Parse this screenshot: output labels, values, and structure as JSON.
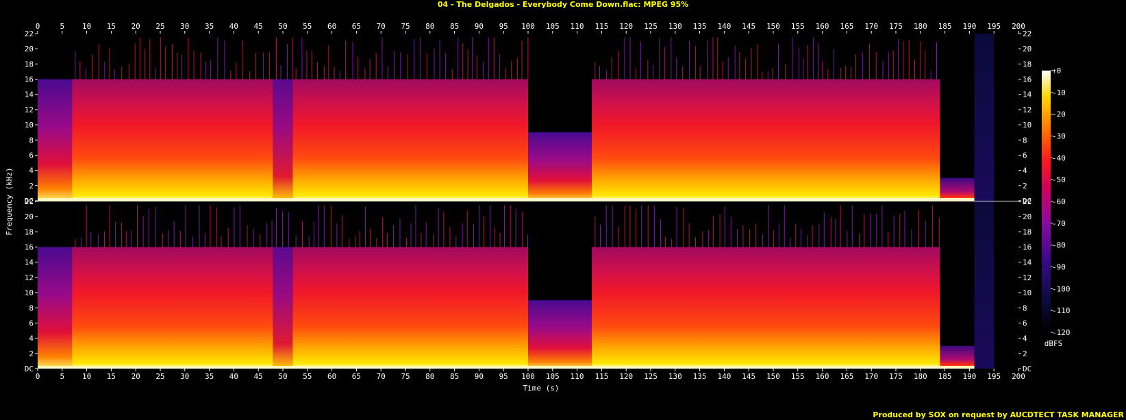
{
  "title": "04 - The Delgados - Everybody Come Down.flac: MPEG 95%",
  "footer": "Produced by SOX on request by AUCDTECT TASK MANAGER",
  "colors": {
    "background": "#000000",
    "text": "#ffffff",
    "title": "#ffff00"
  },
  "chart_data": {
    "type": "heatmap",
    "xlabel": "Time (s)",
    "ylabel": "Frequency (kHz)",
    "xlim": [
      0,
      200
    ],
    "ylim": [
      0,
      22
    ],
    "x_ticks": [
      "0",
      "5",
      "10",
      "15",
      "20",
      "25",
      "30",
      "35",
      "40",
      "45",
      "50",
      "55",
      "60",
      "65",
      "70",
      "75",
      "80",
      "85",
      "90",
      "95",
      "100",
      "105",
      "110",
      "115",
      "120",
      "125",
      "130",
      "135",
      "140",
      "145",
      "150",
      "155",
      "160",
      "165",
      "170",
      "175",
      "180",
      "185",
      "190",
      "195",
      "200"
    ],
    "y_ticks": [
      "DC",
      "2",
      "4",
      "6",
      "8",
      "10",
      "12",
      "14",
      "16",
      "18",
      "20",
      "22"
    ],
    "channels": 2,
    "colorbar": {
      "label": "dBFS",
      "range": [
        -120,
        0
      ],
      "ticks": [
        "+0",
        "-10",
        "-20",
        "-30",
        "-40",
        "-50",
        "-60",
        "-70",
        "-80",
        "-90",
        "-100",
        "-110",
        "-120"
      ]
    },
    "segments": [
      {
        "start": 0,
        "end": 7,
        "cutoff_khz": 16,
        "level": "quiet"
      },
      {
        "start": 7,
        "end": 48,
        "cutoff_khz": 16,
        "level": "loud"
      },
      {
        "start": 48,
        "end": 52,
        "cutoff_khz": 16,
        "level": "transition"
      },
      {
        "start": 52,
        "end": 100,
        "cutoff_khz": 16,
        "level": "loud"
      },
      {
        "start": 100,
        "end": 113,
        "cutoff_khz": 9,
        "level": "quiet"
      },
      {
        "start": 113,
        "end": 184,
        "cutoff_khz": 16,
        "level": "loud"
      },
      {
        "start": 184,
        "end": 191,
        "cutoff_khz": 3,
        "level": "fade"
      },
      {
        "start": 191,
        "end": 195,
        "cutoff_khz": 22,
        "level": "silence"
      },
      {
        "start": 195,
        "end": 200,
        "cutoff_khz": 0,
        "level": "none"
      }
    ]
  }
}
